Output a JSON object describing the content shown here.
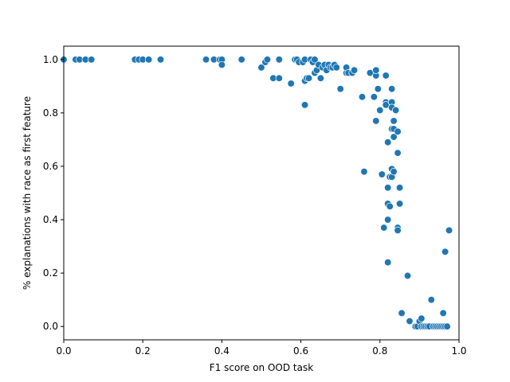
{
  "chart_data": {
    "type": "scatter",
    "title": "",
    "xlabel": "F1 score on OOD task",
    "ylabel": "% explanations with race as first feature",
    "xlim": [
      0.0,
      1.0
    ],
    "ylim": [
      -0.05,
      1.05
    ],
    "xticks": [
      0.0,
      0.2,
      0.4,
      0.6,
      0.8,
      1.0
    ],
    "xtick_labels": [
      "0.0",
      "0.2",
      "0.4",
      "0.6",
      "0.8",
      "1.0"
    ],
    "yticks": [
      0.0,
      0.2,
      0.4,
      0.6,
      0.8,
      1.0
    ],
    "ytick_labels": [
      "0.0",
      "0.2",
      "0.4",
      "0.6",
      "0.8",
      "1.0"
    ],
    "grid": false,
    "legend": "none",
    "marker_color": "#1f77b4",
    "points": [
      [
        0.0,
        1.0
      ],
      [
        0.03,
        1.0
      ],
      [
        0.04,
        1.0
      ],
      [
        0.055,
        1.0
      ],
      [
        0.07,
        1.0
      ],
      [
        0.18,
        1.0
      ],
      [
        0.19,
        1.0
      ],
      [
        0.2,
        1.0
      ],
      [
        0.215,
        1.0
      ],
      [
        0.245,
        1.0
      ],
      [
        0.36,
        1.0
      ],
      [
        0.38,
        1.0
      ],
      [
        0.395,
        1.0
      ],
      [
        0.4,
        1.0
      ],
      [
        0.4,
        0.98
      ],
      [
        0.45,
        1.0
      ],
      [
        0.5,
        0.97
      ],
      [
        0.51,
        0.99
      ],
      [
        0.515,
        1.0
      ],
      [
        0.53,
        0.93
      ],
      [
        0.545,
        0.93
      ],
      [
        0.545,
        1.0
      ],
      [
        0.575,
        0.91
      ],
      [
        0.585,
        1.0
      ],
      [
        0.59,
        1.0
      ],
      [
        0.595,
        0.99
      ],
      [
        0.605,
        0.99
      ],
      [
        0.61,
        1.0
      ],
      [
        0.61,
        0.92
      ],
      [
        0.61,
        0.83
      ],
      [
        0.615,
        0.93
      ],
      [
        0.62,
        0.93
      ],
      [
        0.625,
        1.0
      ],
      [
        0.63,
        0.99
      ],
      [
        0.635,
        1.0
      ],
      [
        0.635,
        0.95
      ],
      [
        0.64,
        0.96
      ],
      [
        0.645,
        0.98
      ],
      [
        0.65,
        0.93
      ],
      [
        0.655,
        0.97
      ],
      [
        0.66,
        0.98
      ],
      [
        0.665,
        0.96
      ],
      [
        0.67,
        0.98
      ],
      [
        0.675,
        0.97
      ],
      [
        0.68,
        0.97
      ],
      [
        0.685,
        0.98
      ],
      [
        0.69,
        0.97
      ],
      [
        0.7,
        0.89
      ],
      [
        0.715,
        0.95
      ],
      [
        0.715,
        0.97
      ],
      [
        0.72,
        0.95
      ],
      [
        0.73,
        0.95
      ],
      [
        0.735,
        0.96
      ],
      [
        0.755,
        0.86
      ],
      [
        0.76,
        0.58
      ],
      [
        0.775,
        0.95
      ],
      [
        0.785,
        0.86
      ],
      [
        0.79,
        0.94
      ],
      [
        0.79,
        0.77
      ],
      [
        0.79,
        0.96
      ],
      [
        0.795,
        0.89
      ],
      [
        0.8,
        0.81
      ],
      [
        0.805,
        0.57
      ],
      [
        0.81,
        0.37
      ],
      [
        0.815,
        0.94
      ],
      [
        0.815,
        0.84
      ],
      [
        0.815,
        0.83
      ],
      [
        0.82,
        0.69
      ],
      [
        0.82,
        0.52
      ],
      [
        0.82,
        0.46
      ],
      [
        0.82,
        0.4
      ],
      [
        0.82,
        0.24
      ],
      [
        0.825,
        0.56
      ],
      [
        0.825,
        0.45
      ],
      [
        0.83,
        0.89
      ],
      [
        0.83,
        0.84
      ],
      [
        0.83,
        0.74
      ],
      [
        0.83,
        0.59
      ],
      [
        0.83,
        0.56
      ],
      [
        0.83,
        0.82
      ],
      [
        0.835,
        0.77
      ],
      [
        0.835,
        0.74
      ],
      [
        0.835,
        0.71
      ],
      [
        0.835,
        0.58
      ],
      [
        0.84,
        0.81
      ],
      [
        0.845,
        0.37
      ],
      [
        0.845,
        0.36
      ],
      [
        0.845,
        0.73
      ],
      [
        0.845,
        0.65
      ],
      [
        0.85,
        0.46
      ],
      [
        0.85,
        0.52
      ],
      [
        0.855,
        0.05
      ],
      [
        0.87,
        0.19
      ],
      [
        0.875,
        0.02
      ],
      [
        0.89,
        0.0
      ],
      [
        0.895,
        0.0
      ],
      [
        0.9,
        0.02
      ],
      [
        0.905,
        0.0
      ],
      [
        0.905,
        0.03
      ],
      [
        0.91,
        0.0
      ],
      [
        0.915,
        0.0
      ],
      [
        0.92,
        0.0
      ],
      [
        0.925,
        0.0
      ],
      [
        0.93,
        0.1
      ],
      [
        0.935,
        0.0
      ],
      [
        0.94,
        0.0
      ],
      [
        0.945,
        0.0
      ],
      [
        0.95,
        0.0
      ],
      [
        0.955,
        0.0
      ],
      [
        0.96,
        0.05
      ],
      [
        0.96,
        0.0
      ],
      [
        0.965,
        0.28
      ],
      [
        0.965,
        0.0
      ],
      [
        0.97,
        0.0
      ],
      [
        0.975,
        0.36
      ]
    ]
  }
}
